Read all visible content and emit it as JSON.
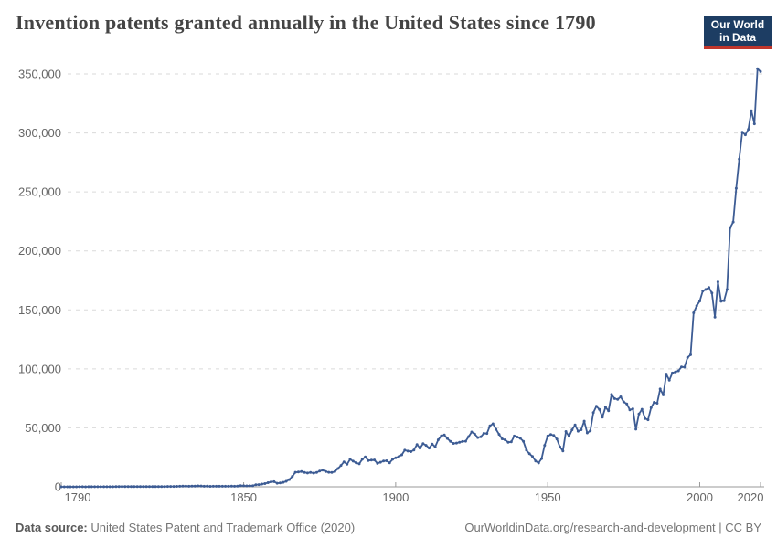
{
  "header": {
    "title": "Invention patents granted annually in the United States since 1790",
    "logo": {
      "line1": "Our World",
      "line2": "in Data"
    }
  },
  "footer": {
    "source_label": "Data source:",
    "source_text": "United States Patent and Trademark Office (2020)",
    "credit": "OurWorldinData.org/research-and-development | CC BY"
  },
  "colors": {
    "line": "#3d5c94",
    "grid": "#dadada",
    "axis": "#9a9a9a",
    "tick_label": "#666666",
    "logo_bg": "#1d3d63",
    "logo_red": "#c0362c"
  },
  "chart_data": {
    "type": "line",
    "title": "Invention patents granted annually in the United States since 1790",
    "xlabel": "",
    "ylabel": "",
    "xlim": [
      1790,
      2020
    ],
    "ylim": [
      0,
      350000
    ],
    "grid": "horizontal-dashed",
    "legend": "none",
    "markers": true,
    "x_start": 1790,
    "x_step": 1,
    "x_end": 2020,
    "xticks": [
      {
        "v": 1790,
        "label": "1790"
      },
      {
        "v": 1850,
        "label": "1850"
      },
      {
        "v": 1900,
        "label": "1900"
      },
      {
        "v": 1950,
        "label": "1950"
      },
      {
        "v": 2000,
        "label": "2000"
      },
      {
        "v": 2020,
        "label": "2020"
      }
    ],
    "yticks": [
      {
        "v": 0,
        "label": "0"
      },
      {
        "v": 50000,
        "label": "50,000"
      },
      {
        "v": 100000,
        "label": "100,000"
      },
      {
        "v": 150000,
        "label": "150,000"
      },
      {
        "v": 200000,
        "label": "200,000"
      },
      {
        "v": 250000,
        "label": "250,000"
      },
      {
        "v": 300000,
        "label": "300,000"
      },
      {
        "v": 350000,
        "label": "350,000"
      }
    ],
    "series": [
      {
        "name": "United States",
        "values": [
          3,
          33,
          11,
          20,
          22,
          12,
          44,
          51,
          28,
          44,
          41,
          44,
          65,
          97,
          84,
          57,
          63,
          99,
          158,
          203,
          223,
          215,
          238,
          181,
          210,
          173,
          206,
          174,
          222,
          156,
          155,
          168,
          200,
          173,
          228,
          304,
          323,
          331,
          368,
          447,
          544,
          573,
          474,
          586,
          630,
          752,
          702,
          426,
          514,
          404,
          458,
          490,
          488,
          493,
          478,
          473,
          566,
          495,
          583,
          984,
          883,
          752,
          885,
          844,
          1755,
          1881,
          2302,
          2674,
          3455,
          4160,
          4357,
          3020,
          3214,
          3773,
          4630,
          6088,
          8863,
          12277,
          12526,
          12931,
          12137,
          11659,
          12180,
          11616,
          12230,
          13291,
          14169,
          12920,
          12345,
          12165,
          12902,
          15500,
          18091,
          21162,
          19118,
          23285,
          21767,
          20403,
          19551,
          23324,
          25313,
          22312,
          22647,
          22750,
          19855,
          20856,
          21822,
          22067,
          20377,
          23278,
          24644,
          25546,
          27119,
          31029,
          30258,
          29775,
          31170,
          35859,
          32735,
          36561,
          35141,
          32856,
          36198,
          33917,
          39892,
          43118,
          43892,
          40935,
          38452,
          36797,
          37060,
          37798,
          38369,
          38616,
          42584,
          46432,
          44733,
          41717,
          42357,
          45267,
          45226,
          51756,
          53458,
          48774,
          44420,
          40618,
          39782,
          37683,
          38061,
          43073,
          42238,
          41109,
          38449,
          31054,
          28053,
          25695,
          21803,
          20191,
          23963,
          35131,
          43040,
          44326,
          43616,
          40468,
          33809,
          30432,
          46817,
          42744,
          48330,
          52408,
          47170,
          48368,
          55691,
          45679,
          47376,
          62857,
          68406,
          65652,
          59104,
          67559,
          64427,
          78317,
          74810,
          74143,
          76278,
          71994,
          70226,
          65269,
          66102,
          48854,
          61819,
          65771,
          57888,
          56860,
          67200,
          71661,
          70860,
          82952,
          77924,
          95537,
          90365,
          96511,
          97444,
          98342,
          101676,
          101419,
          109645,
          111983,
          147517,
          153485,
          157494,
          166035,
          167331,
          169023,
          164290,
          143806,
          173772,
          157282,
          157772,
          167349,
          219614,
          224505,
          253155,
          277835,
          300678,
          298407,
          303049,
          318829,
          307759,
          354430,
          351993
        ]
      }
    ]
  }
}
